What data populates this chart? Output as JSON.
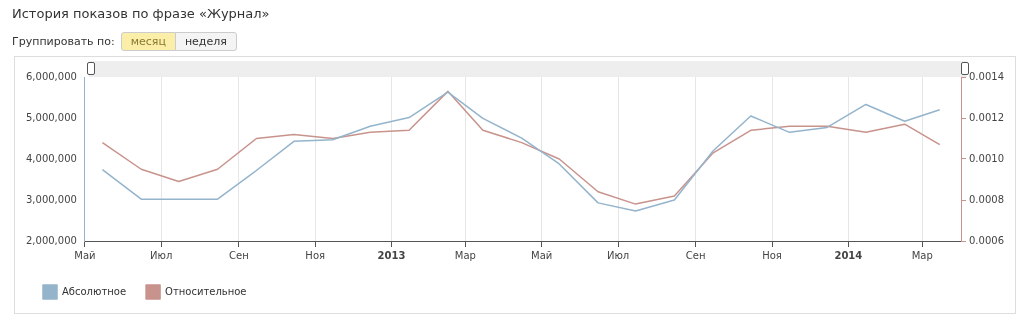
{
  "chart_data": {
    "type": "line",
    "title": "История показов по фразе «Журнал»",
    "annotations": [
      "Группировать по:",
      "месяц",
      "неделя"
    ],
    "x": [
      "2012-05-15",
      "2012-06-15",
      "2012-07-15",
      "2012-08-15",
      "2012-09-15",
      "2012-10-15",
      "2012-11-15",
      "2012-12-15",
      "2013-01-15",
      "2013-02-15",
      "2013-03-15",
      "2013-04-15",
      "2013-05-15",
      "2013-06-15",
      "2013-07-15",
      "2013-08-15",
      "2013-09-15",
      "2013-10-15",
      "2013-11-15",
      "2013-12-15",
      "2014-01-15",
      "2014-02-15",
      "2014-03-15"
    ],
    "series": [
      {
        "name": "Абсолютное",
        "color": "#94b4cc",
        "values": [
          3740000,
          3020000,
          3020000,
          3020000,
          3720000,
          4430000,
          4470000,
          4800000,
          5010000,
          5630000,
          4990000,
          4510000,
          3880000,
          2930000,
          2730000,
          3000000,
          4200000,
          5050000,
          4650000,
          4770000,
          5330000,
          4920000,
          5200000
        ]
      },
      {
        "name": "Относительное",
        "color": "#c8938c",
        "axis": "y2",
        "values": [
          0.00108,
          0.00095,
          0.00089,
          0.00095,
          0.0011,
          0.00112,
          0.0011,
          0.00113,
          0.00114,
          0.00133,
          0.00114,
          0.00108,
          0.001,
          0.00084,
          0.00078,
          0.00082,
          0.00103,
          0.00114,
          0.00116,
          0.00116,
          0.00113,
          0.00117,
          0.00107
        ]
      }
    ],
    "xlim": [
      "2012-05-01",
      "2014-04-01"
    ],
    "xticks": [
      {
        "value": "2012-05-01",
        "label": "Май"
      },
      {
        "value": "2012-07-01",
        "label": "Июл"
      },
      {
        "value": "2012-09-01",
        "label": "Сен"
      },
      {
        "value": "2012-11-01",
        "label": "Ноя"
      },
      {
        "value": "2013-01-01",
        "label": "2013"
      },
      {
        "value": "2013-03-01",
        "label": "Мар"
      },
      {
        "value": "2013-05-01",
        "label": "Май"
      },
      {
        "value": "2013-07-01",
        "label": "Июл"
      },
      {
        "value": "2013-09-01",
        "label": "Сен"
      },
      {
        "value": "2013-11-01",
        "label": "Ноя"
      },
      {
        "value": "2014-01-01",
        "label": "2014"
      },
      {
        "value": "2014-03-01",
        "label": "Мар"
      }
    ],
    "ylim": [
      2000000,
      6000000
    ],
    "yticks": [
      {
        "value": 2000000,
        "label": "2,000,000"
      },
      {
        "value": 3000000,
        "label": "3,000,000"
      },
      {
        "value": 4000000,
        "label": "4,000,000"
      },
      {
        "value": 5000000,
        "label": "5,000,000"
      },
      {
        "value": 6000000,
        "label": "6,000,000"
      }
    ],
    "y2lim": [
      0.0006,
      0.0014
    ],
    "y2ticks": [
      {
        "value": 0.0006,
        "label": "0.0006"
      },
      {
        "value": 0.0008,
        "label": "0.0008"
      },
      {
        "value": 0.001,
        "label": "0.0010"
      },
      {
        "value": 0.0012,
        "label": "0.0012"
      },
      {
        "value": 0.0014,
        "label": "0.0014"
      }
    ],
    "grid": "x",
    "legend": "bottom left",
    "marker": "none",
    "line_style": "solid"
  }
}
